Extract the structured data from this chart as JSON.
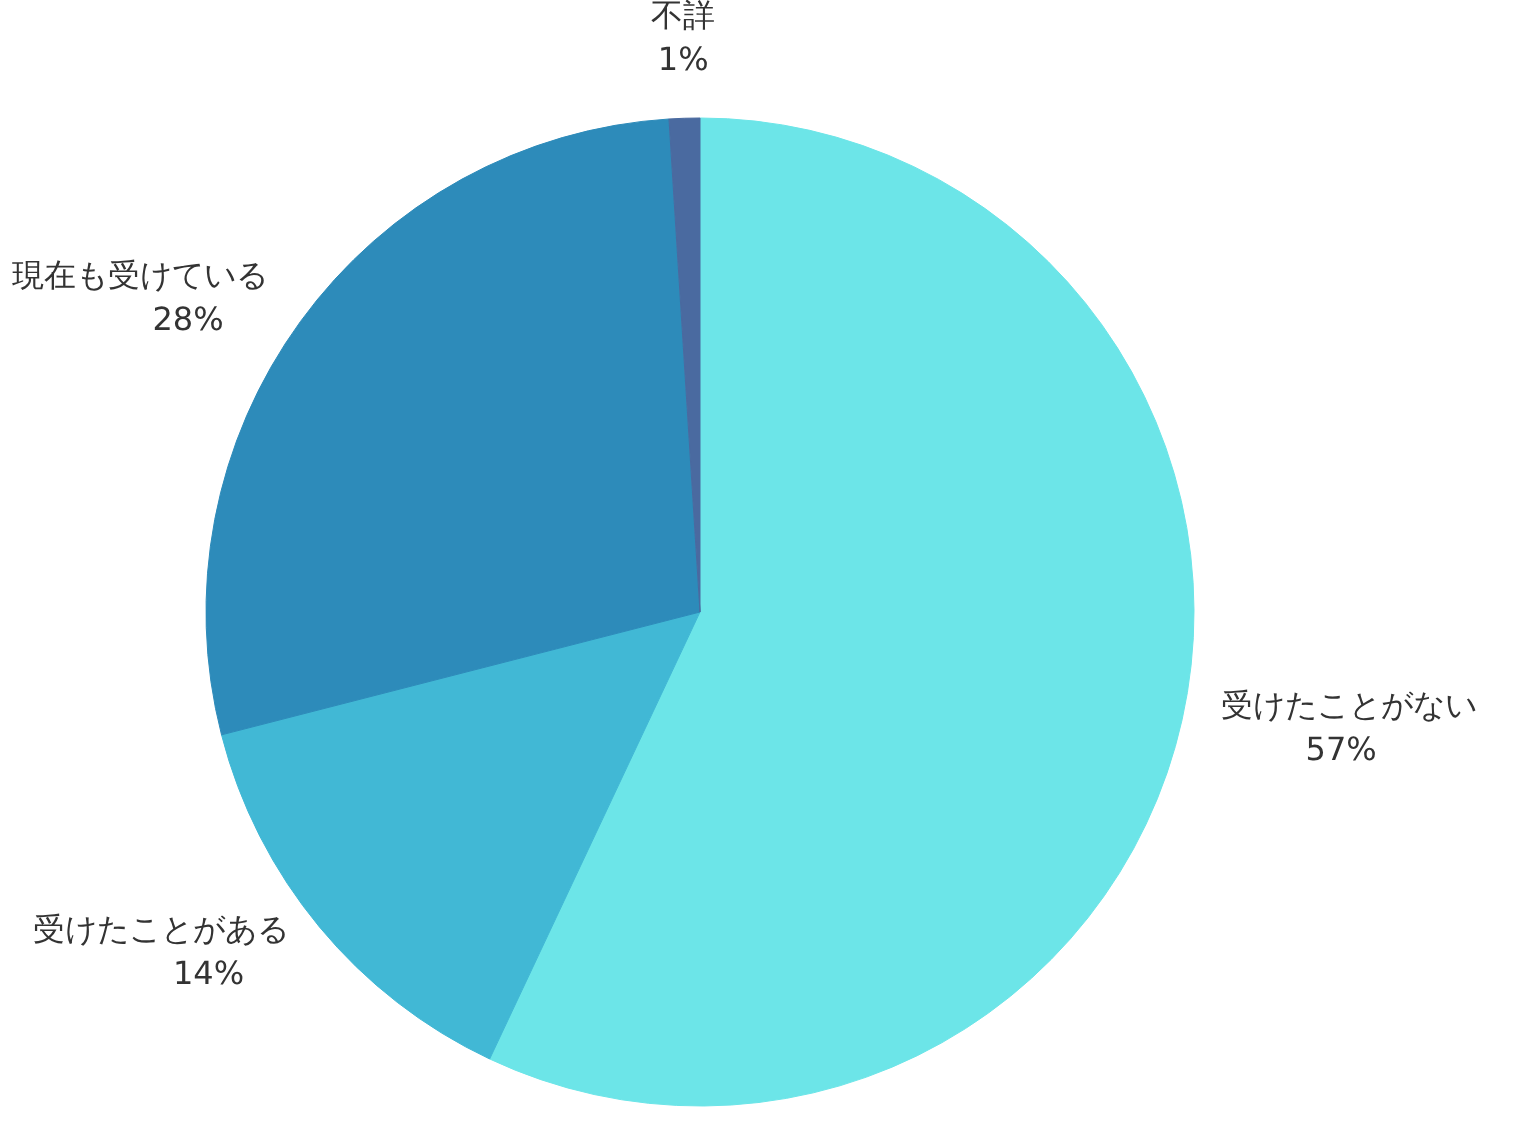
{
  "chart_data": {
    "type": "pie",
    "categories": [
      "受けたことがない",
      "受けたことがある",
      "現在も受けている",
      "不詳"
    ],
    "values": [
      57,
      14,
      28,
      1
    ],
    "value_labels": [
      "57%",
      "14%",
      "28%",
      "1%"
    ],
    "colors": [
      "#6ce5e8",
      "#41b8d5",
      "#2d8bba",
      "#4a6aa0"
    ]
  }
}
